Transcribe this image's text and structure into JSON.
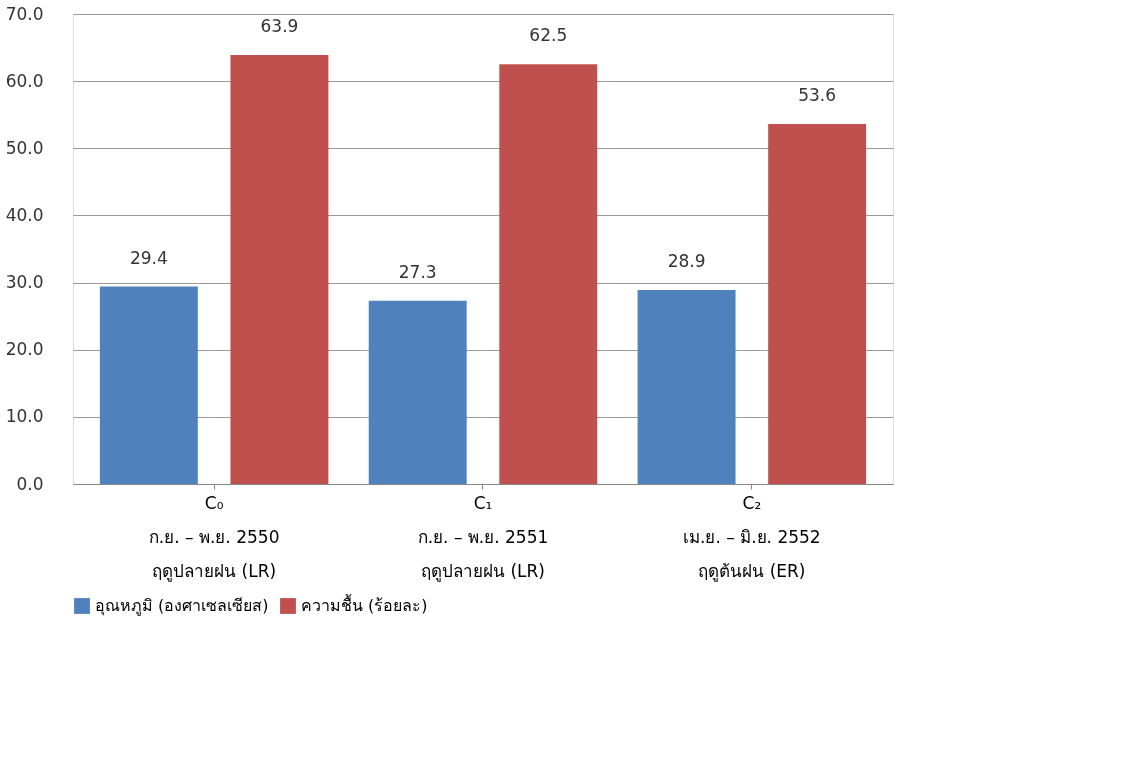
{
  "chart_data": {
    "type": "bar",
    "categories": [
      "C₀\nก.ย. – พ.ย. 2550\nฤดูปลายฝน (LR)",
      "C₁\nก.ย. – พ.ย. 2551\nฤดูปลายฝน (LR)",
      "C₂\nเม.ย. – มิ.ย. 2552\nฤดูต้นฝน (ER)"
    ],
    "series": [
      {
        "name": "อุณหภูมิ (องศาเซลเซียส)",
        "color": "#4f81bd",
        "values": [
          29.4,
          27.3,
          28.9
        ]
      },
      {
        "name": "ความชื้น (ร้อยละ)",
        "color": "#c0504d",
        "values": [
          63.9,
          62.5,
          53.6
        ]
      }
    ],
    "ylim": [
      0,
      70
    ],
    "yticks": [
      {
        "value": 0,
        "label": "0.0"
      },
      {
        "value": 10,
        "label": "10.0"
      },
      {
        "value": 20,
        "label": "20.0"
      },
      {
        "value": 30,
        "label": "30.0"
      },
      {
        "value": 40,
        "label": "40.0"
      },
      {
        "value": 50,
        "label": "50.0"
      },
      {
        "value": 60,
        "label": "60.0"
      },
      {
        "value": 70,
        "label": "70.0"
      }
    ],
    "grid": "y",
    "legend": "bottom",
    "data_labels": true
  }
}
